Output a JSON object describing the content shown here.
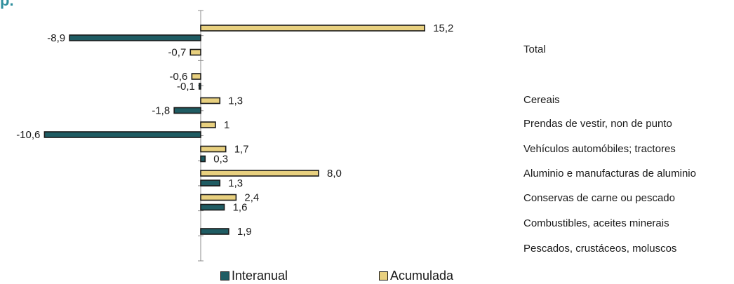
{
  "colors": {
    "interanual": "#1f5c63",
    "acumulada": "#e8d07f",
    "axis": "#8c8c8c",
    "title": "#2f8f9d"
  },
  "chart_data": {
    "type": "bar",
    "orientation": "horizontal",
    "xlim": [
      -11,
      15.5
    ],
    "category_rows": [
      "Total",
      "",
      "Cereais",
      "Prendas de vestir, non de punto",
      "Vehículos automóbiles; tractores",
      "Aluminio e manufacturas de aluminio",
      "Conservas de carne ou pescado",
      "Combustibles, aceites minerais",
      "Pescados, crustáceos, moluscos"
    ],
    "series": [
      {
        "name": "Interanual",
        "values": [
          -8.9,
          null,
          -0.1,
          -1.8,
          -10.6,
          0.3,
          1.3,
          1.6,
          1.9
        ],
        "labels": [
          "-8,9",
          "",
          "-0,1",
          "-1,8",
          "-10,6",
          "0,3",
          "1,3",
          "1,6",
          "1,9"
        ]
      },
      {
        "name": "Acumulada",
        "values": [
          15.2,
          -0.7,
          -0.6,
          1.3,
          1.0,
          1.7,
          8.0,
          2.4,
          null
        ],
        "labels": [
          "15,2",
          "-0,7",
          "-0,6",
          "1,3",
          "1",
          "1,7",
          "8,0",
          "2,4",
          ""
        ]
      }
    ],
    "legend": {
      "position": "bottom",
      "items": [
        "Interanual",
        "Acumulada"
      ]
    }
  }
}
